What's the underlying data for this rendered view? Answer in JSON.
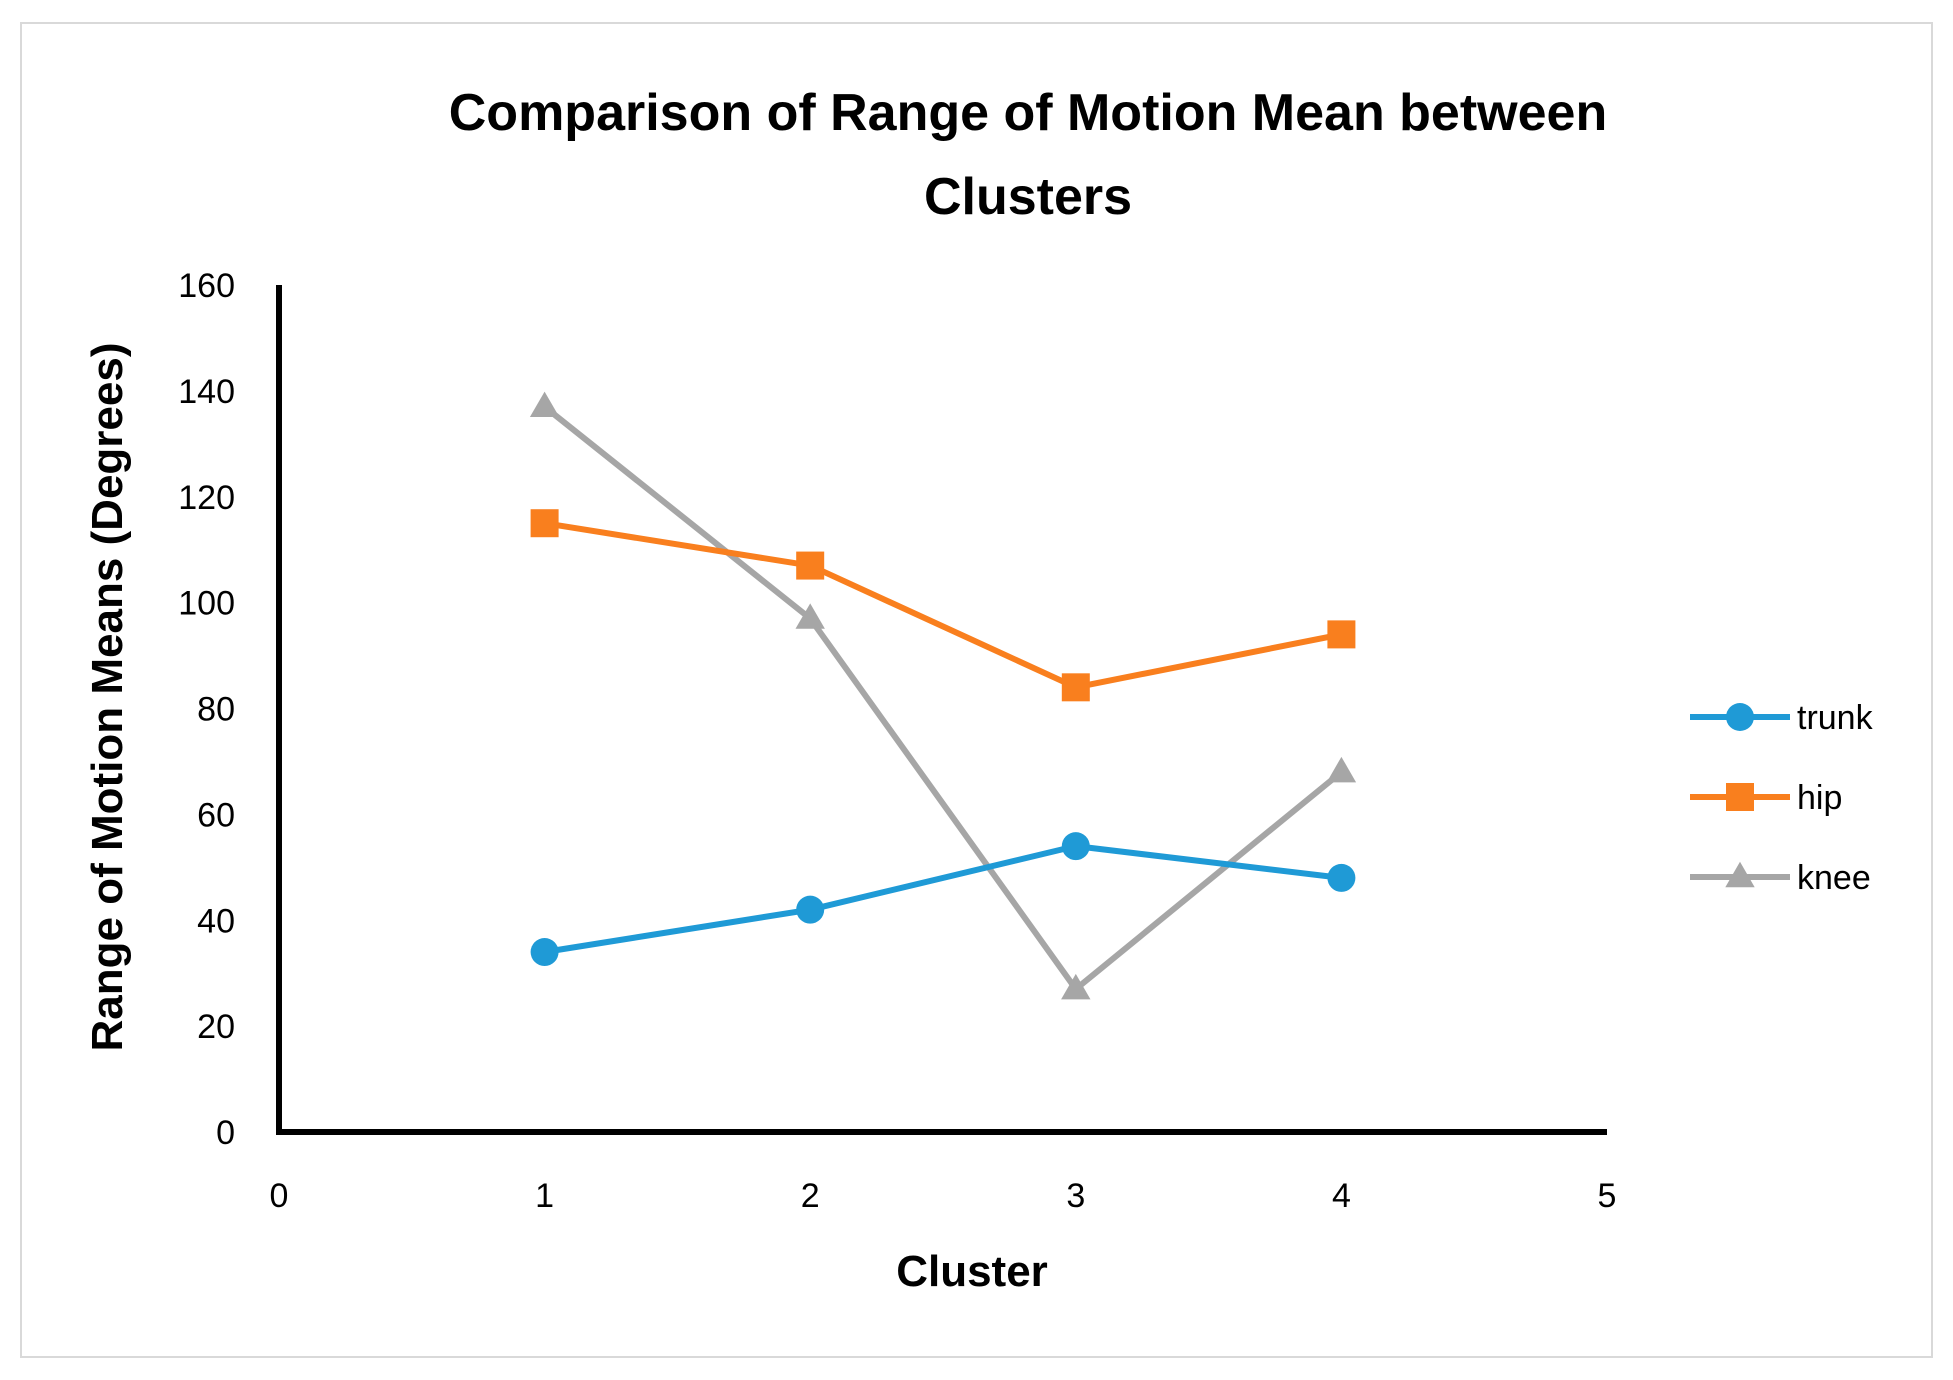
{
  "chart_data": {
    "type": "line",
    "title": "Comparison of Range of Motion Mean between Clusters",
    "title_lines": [
      "Comparison of Range of Motion Mean between",
      "Clusters"
    ],
    "xlabel": "Cluster",
    "ylabel": "Range of Motion Means (Degrees)",
    "xlim": [
      0,
      5
    ],
    "ylim": [
      0,
      160
    ],
    "x_ticks": [
      "0",
      "1",
      "2",
      "3",
      "4",
      "5"
    ],
    "y_ticks": [
      "0",
      "20",
      "40",
      "60",
      "80",
      "100",
      "120",
      "140",
      "160"
    ],
    "x": [
      1,
      2,
      3,
      4
    ],
    "grid": false,
    "legend_position": "right",
    "series": [
      {
        "name": "trunk",
        "values": [
          34,
          42,
          54,
          48
        ],
        "color": "#1f9ad6",
        "marker": "circle"
      },
      {
        "name": "hip",
        "values": [
          115,
          107,
          84,
          94
        ],
        "color": "#f97f1e",
        "marker": "square"
      },
      {
        "name": "knee",
        "values": [
          137,
          97,
          27,
          68
        ],
        "color": "#a6a6a6",
        "marker": "triangle"
      }
    ]
  }
}
